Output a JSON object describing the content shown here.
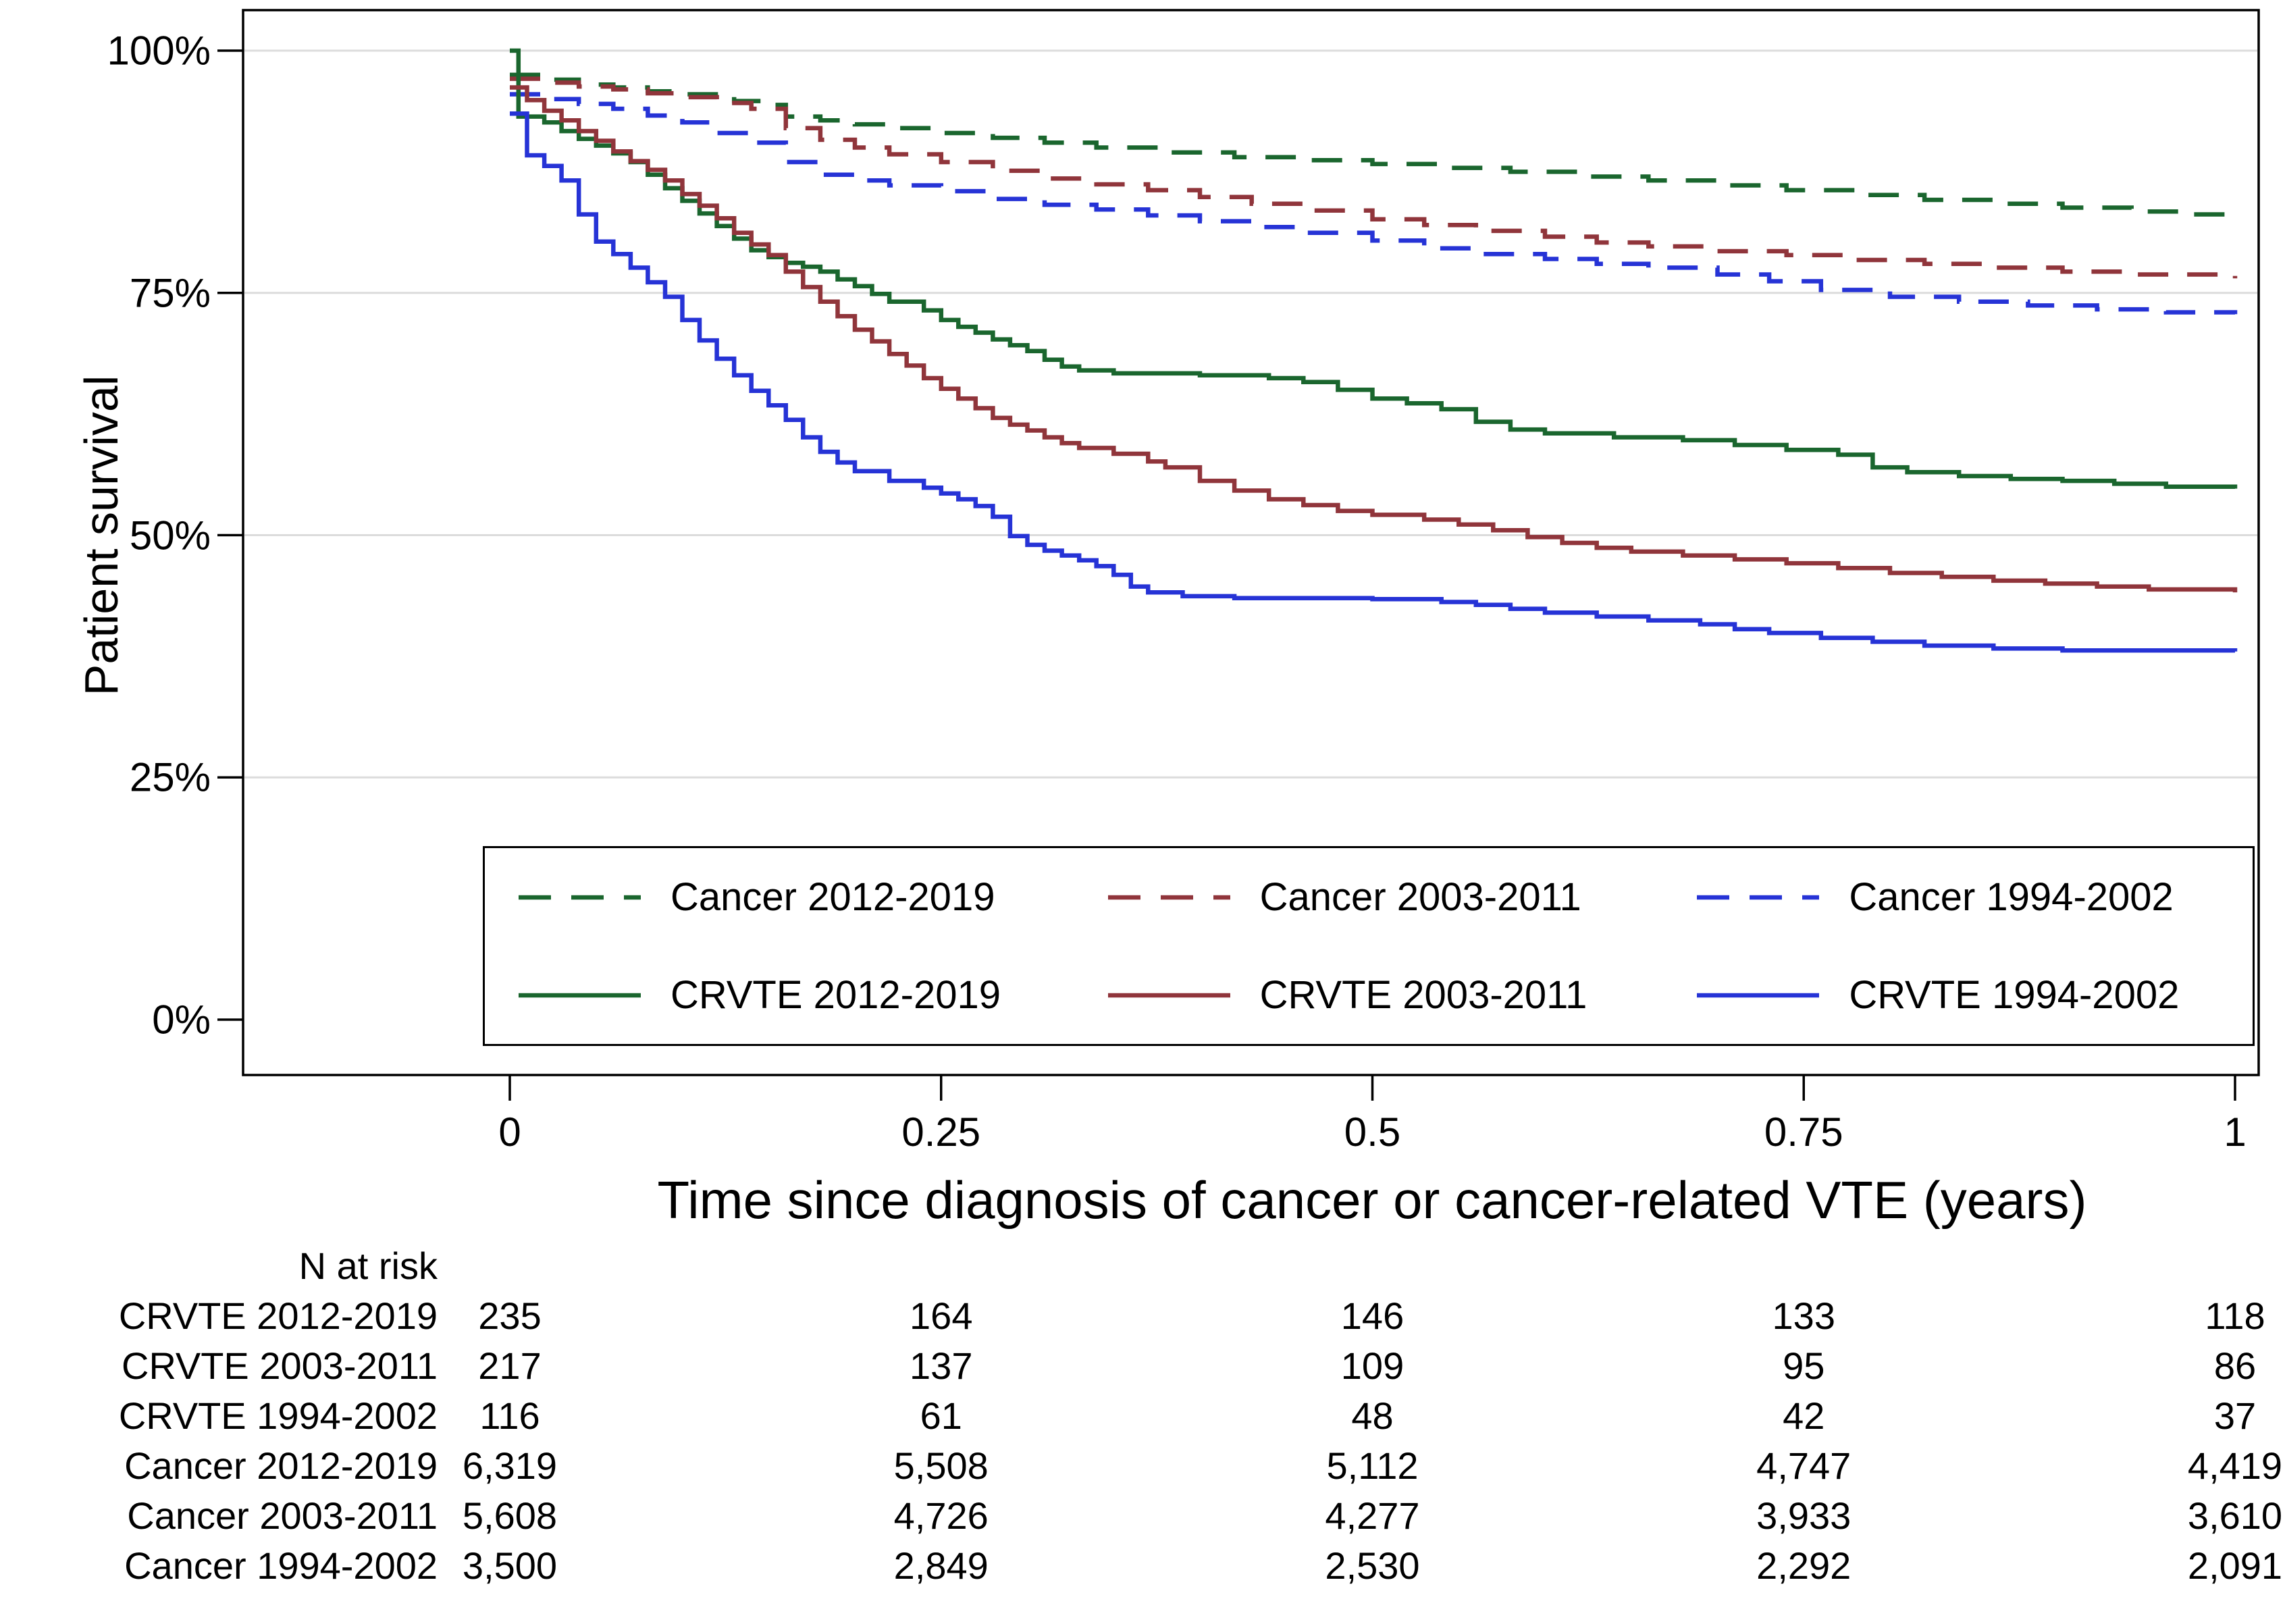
{
  "chart_data": {
    "type": "line",
    "subtype": "kaplan_meier_step",
    "title": "",
    "xlabel": "Time since diagnosis of cancer or cancer-related VTE (years)",
    "ylabel": "Patient survival",
    "xlim": [
      0,
      1
    ],
    "ylim": [
      0,
      1
    ],
    "x_ticks": [
      0,
      0.25,
      0.5,
      0.75,
      1
    ],
    "x_tick_labels": [
      "0",
      "0.25",
      "0.5",
      "0.75",
      "1"
    ],
    "y_ticks": [
      0,
      0.25,
      0.5,
      0.75,
      1
    ],
    "y_tick_labels": [
      "0%",
      "25%",
      "50%",
      "75%",
      "100%"
    ],
    "grid": "horizontal",
    "grid_color": "#dcdcdc",
    "axis_color": "#000000",
    "legend_position": "inside-bottom",
    "series": [
      {
        "name": "Cancer 2012-2019",
        "color": "#1a662e",
        "dashed": true,
        "points": [
          [
            0,
            0.975
          ],
          [
            0.02,
            0.97
          ],
          [
            0.04,
            0.965
          ],
          [
            0.06,
            0.962
          ],
          [
            0.08,
            0.958
          ],
          [
            0.1,
            0.955
          ],
          [
            0.13,
            0.948
          ],
          [
            0.15,
            0.944
          ],
          [
            0.16,
            0.932
          ],
          [
            0.18,
            0.928
          ],
          [
            0.2,
            0.924
          ],
          [
            0.22,
            0.92
          ],
          [
            0.25,
            0.915
          ],
          [
            0.28,
            0.91
          ],
          [
            0.31,
            0.905
          ],
          [
            0.34,
            0.9
          ],
          [
            0.38,
            0.895
          ],
          [
            0.42,
            0.89
          ],
          [
            0.46,
            0.887
          ],
          [
            0.5,
            0.883
          ],
          [
            0.54,
            0.879
          ],
          [
            0.58,
            0.875
          ],
          [
            0.62,
            0.87
          ],
          [
            0.66,
            0.866
          ],
          [
            0.7,
            0.861
          ],
          [
            0.74,
            0.856
          ],
          [
            0.78,
            0.851
          ],
          [
            0.82,
            0.846
          ],
          [
            0.86,
            0.842
          ],
          [
            0.9,
            0.838
          ],
          [
            0.94,
            0.834
          ],
          [
            0.97,
            0.831
          ],
          [
            1.0,
            0.828
          ]
        ]
      },
      {
        "name": "Cancer 2003-2011",
        "color": "#90353b",
        "dashed": true,
        "points": [
          [
            0,
            0.971
          ],
          [
            0.02,
            0.967
          ],
          [
            0.04,
            0.963
          ],
          [
            0.06,
            0.96
          ],
          [
            0.08,
            0.956
          ],
          [
            0.1,
            0.952
          ],
          [
            0.12,
            0.946
          ],
          [
            0.14,
            0.94
          ],
          [
            0.16,
            0.92
          ],
          [
            0.18,
            0.908
          ],
          [
            0.2,
            0.9
          ],
          [
            0.22,
            0.893
          ],
          [
            0.25,
            0.885
          ],
          [
            0.28,
            0.876
          ],
          [
            0.31,
            0.868
          ],
          [
            0.34,
            0.862
          ],
          [
            0.37,
            0.856
          ],
          [
            0.4,
            0.849
          ],
          [
            0.43,
            0.842
          ],
          [
            0.46,
            0.835
          ],
          [
            0.5,
            0.826
          ],
          [
            0.53,
            0.82
          ],
          [
            0.56,
            0.814
          ],
          [
            0.6,
            0.808
          ],
          [
            0.63,
            0.802
          ],
          [
            0.66,
            0.798
          ],
          [
            0.7,
            0.793
          ],
          [
            0.74,
            0.789
          ],
          [
            0.78,
            0.784
          ],
          [
            0.82,
            0.78
          ],
          [
            0.86,
            0.776
          ],
          [
            0.9,
            0.772
          ],
          [
            0.94,
            0.769
          ],
          [
            1.0,
            0.765
          ]
        ]
      },
      {
        "name": "Cancer 1994-2002",
        "color": "#2633d6",
        "dashed": true,
        "points": [
          [
            0,
            0.955
          ],
          [
            0.02,
            0.95
          ],
          [
            0.04,
            0.945
          ],
          [
            0.06,
            0.94
          ],
          [
            0.08,
            0.933
          ],
          [
            0.1,
            0.926
          ],
          [
            0.12,
            0.915
          ],
          [
            0.14,
            0.905
          ],
          [
            0.16,
            0.885
          ],
          [
            0.18,
            0.872
          ],
          [
            0.2,
            0.866
          ],
          [
            0.22,
            0.861
          ],
          [
            0.25,
            0.855
          ],
          [
            0.28,
            0.847
          ],
          [
            0.31,
            0.841
          ],
          [
            0.34,
            0.836
          ],
          [
            0.37,
            0.83
          ],
          [
            0.4,
            0.824
          ],
          [
            0.43,
            0.818
          ],
          [
            0.46,
            0.812
          ],
          [
            0.5,
            0.804
          ],
          [
            0.53,
            0.796
          ],
          [
            0.56,
            0.79
          ],
          [
            0.6,
            0.785
          ],
          [
            0.63,
            0.78
          ],
          [
            0.66,
            0.776
          ],
          [
            0.7,
            0.769
          ],
          [
            0.73,
            0.762
          ],
          [
            0.76,
            0.753
          ],
          [
            0.8,
            0.746
          ],
          [
            0.84,
            0.741
          ],
          [
            0.88,
            0.737
          ],
          [
            0.92,
            0.733
          ],
          [
            0.96,
            0.73
          ],
          [
            1.0,
            0.728
          ]
        ]
      },
      {
        "name": "CRVTE 2012-2019",
        "color": "#1a662e",
        "dashed": false,
        "points": [
          [
            0,
            1.0
          ],
          [
            0.005,
            0.932
          ],
          [
            0.02,
            0.926
          ],
          [
            0.03,
            0.917
          ],
          [
            0.04,
            0.909
          ],
          [
            0.05,
            0.902
          ],
          [
            0.06,
            0.894
          ],
          [
            0.07,
            0.885
          ],
          [
            0.08,
            0.872
          ],
          [
            0.09,
            0.858
          ],
          [
            0.1,
            0.845
          ],
          [
            0.11,
            0.832
          ],
          [
            0.12,
            0.819
          ],
          [
            0.13,
            0.806
          ],
          [
            0.14,
            0.794
          ],
          [
            0.15,
            0.787
          ],
          [
            0.16,
            0.781
          ],
          [
            0.17,
            0.777
          ],
          [
            0.18,
            0.772
          ],
          [
            0.19,
            0.764
          ],
          [
            0.2,
            0.757
          ],
          [
            0.21,
            0.749
          ],
          [
            0.22,
            0.741
          ],
          [
            0.24,
            0.732
          ],
          [
            0.25,
            0.722
          ],
          [
            0.26,
            0.715
          ],
          [
            0.27,
            0.709
          ],
          [
            0.28,
            0.702
          ],
          [
            0.29,
            0.696
          ],
          [
            0.3,
            0.69
          ],
          [
            0.31,
            0.681
          ],
          [
            0.32,
            0.674
          ],
          [
            0.33,
            0.67
          ],
          [
            0.35,
            0.667
          ],
          [
            0.4,
            0.665
          ],
          [
            0.44,
            0.662
          ],
          [
            0.46,
            0.658
          ],
          [
            0.48,
            0.65
          ],
          [
            0.5,
            0.641
          ],
          [
            0.52,
            0.636
          ],
          [
            0.54,
            0.63
          ],
          [
            0.56,
            0.617
          ],
          [
            0.58,
            0.609
          ],
          [
            0.6,
            0.605
          ],
          [
            0.64,
            0.601
          ],
          [
            0.68,
            0.598
          ],
          [
            0.71,
            0.593
          ],
          [
            0.74,
            0.588
          ],
          [
            0.77,
            0.583
          ],
          [
            0.79,
            0.57
          ],
          [
            0.81,
            0.565
          ],
          [
            0.84,
            0.561
          ],
          [
            0.87,
            0.558
          ],
          [
            0.9,
            0.556
          ],
          [
            0.93,
            0.553
          ],
          [
            0.96,
            0.55
          ],
          [
            1.0,
            0.548
          ]
        ]
      },
      {
        "name": "CRVTE 2003-2011",
        "color": "#90353b",
        "dashed": false,
        "points": [
          [
            0,
            0.962
          ],
          [
            0.01,
            0.949
          ],
          [
            0.02,
            0.938
          ],
          [
            0.03,
            0.928
          ],
          [
            0.04,
            0.917
          ],
          [
            0.05,
            0.907
          ],
          [
            0.06,
            0.896
          ],
          [
            0.07,
            0.886
          ],
          [
            0.08,
            0.877
          ],
          [
            0.09,
            0.866
          ],
          [
            0.1,
            0.852
          ],
          [
            0.11,
            0.84
          ],
          [
            0.12,
            0.827
          ],
          [
            0.13,
            0.812
          ],
          [
            0.14,
            0.8
          ],
          [
            0.15,
            0.789
          ],
          [
            0.16,
            0.772
          ],
          [
            0.17,
            0.756
          ],
          [
            0.18,
            0.741
          ],
          [
            0.19,
            0.726
          ],
          [
            0.2,
            0.712
          ],
          [
            0.21,
            0.7
          ],
          [
            0.22,
            0.687
          ],
          [
            0.23,
            0.675
          ],
          [
            0.24,
            0.662
          ],
          [
            0.25,
            0.651
          ],
          [
            0.26,
            0.641
          ],
          [
            0.27,
            0.631
          ],
          [
            0.28,
            0.621
          ],
          [
            0.29,
            0.614
          ],
          [
            0.3,
            0.608
          ],
          [
            0.31,
            0.601
          ],
          [
            0.32,
            0.595
          ],
          [
            0.33,
            0.59
          ],
          [
            0.35,
            0.584
          ],
          [
            0.37,
            0.576
          ],
          [
            0.38,
            0.57
          ],
          [
            0.4,
            0.556
          ],
          [
            0.42,
            0.546
          ],
          [
            0.44,
            0.537
          ],
          [
            0.46,
            0.531
          ],
          [
            0.48,
            0.525
          ],
          [
            0.5,
            0.521
          ],
          [
            0.53,
            0.516
          ],
          [
            0.55,
            0.511
          ],
          [
            0.57,
            0.505
          ],
          [
            0.59,
            0.498
          ],
          [
            0.61,
            0.492
          ],
          [
            0.63,
            0.487
          ],
          [
            0.65,
            0.483
          ],
          [
            0.68,
            0.479
          ],
          [
            0.71,
            0.475
          ],
          [
            0.74,
            0.471
          ],
          [
            0.77,
            0.466
          ],
          [
            0.8,
            0.461
          ],
          [
            0.83,
            0.457
          ],
          [
            0.86,
            0.453
          ],
          [
            0.89,
            0.45
          ],
          [
            0.92,
            0.447
          ],
          [
            0.95,
            0.444
          ],
          [
            1.0,
            0.441
          ]
        ]
      },
      {
        "name": "CRVTE 1994-2002",
        "color": "#2633d6",
        "dashed": false,
        "points": [
          [
            0,
            0.935
          ],
          [
            0.01,
            0.892
          ],
          [
            0.02,
            0.881
          ],
          [
            0.03,
            0.866
          ],
          [
            0.04,
            0.831
          ],
          [
            0.05,
            0.803
          ],
          [
            0.06,
            0.79
          ],
          [
            0.07,
            0.776
          ],
          [
            0.08,
            0.761
          ],
          [
            0.09,
            0.746
          ],
          [
            0.1,
            0.722
          ],
          [
            0.11,
            0.701
          ],
          [
            0.12,
            0.682
          ],
          [
            0.13,
            0.665
          ],
          [
            0.14,
            0.649
          ],
          [
            0.15,
            0.634
          ],
          [
            0.16,
            0.619
          ],
          [
            0.17,
            0.601
          ],
          [
            0.18,
            0.586
          ],
          [
            0.19,
            0.575
          ],
          [
            0.2,
            0.566
          ],
          [
            0.22,
            0.556
          ],
          [
            0.24,
            0.549
          ],
          [
            0.25,
            0.543
          ],
          [
            0.26,
            0.537
          ],
          [
            0.27,
            0.53
          ],
          [
            0.28,
            0.519
          ],
          [
            0.29,
            0.499
          ],
          [
            0.3,
            0.49
          ],
          [
            0.31,
            0.484
          ],
          [
            0.32,
            0.479
          ],
          [
            0.33,
            0.474
          ],
          [
            0.34,
            0.468
          ],
          [
            0.35,
            0.459
          ],
          [
            0.36,
            0.447
          ],
          [
            0.37,
            0.441
          ],
          [
            0.39,
            0.437
          ],
          [
            0.42,
            0.435
          ],
          [
            0.5,
            0.434
          ],
          [
            0.54,
            0.431
          ],
          [
            0.56,
            0.428
          ],
          [
            0.58,
            0.424
          ],
          [
            0.6,
            0.42
          ],
          [
            0.63,
            0.416
          ],
          [
            0.66,
            0.412
          ],
          [
            0.69,
            0.408
          ],
          [
            0.71,
            0.403
          ],
          [
            0.73,
            0.399
          ],
          [
            0.76,
            0.394
          ],
          [
            0.79,
            0.39
          ],
          [
            0.82,
            0.386
          ],
          [
            0.86,
            0.383
          ],
          [
            0.9,
            0.381
          ],
          [
            1.0,
            0.38
          ]
        ]
      }
    ]
  },
  "risk_table": {
    "title": "N at risk",
    "rows": [
      {
        "label": "CRVTE 2012-2019",
        "values": [
          "235",
          "164",
          "146",
          "133",
          "118"
        ]
      },
      {
        "label": "CRVTE 2003-2011",
        "values": [
          "217",
          "137",
          "109",
          "95",
          "86"
        ]
      },
      {
        "label": "CRVTE 1994-2002",
        "values": [
          "116",
          "61",
          "48",
          "42",
          "37"
        ]
      },
      {
        "label": "Cancer 2012-2019",
        "values": [
          "6,319",
          "5,508",
          "5,112",
          "4,747",
          "4,419"
        ]
      },
      {
        "label": "Cancer 2003-2011",
        "values": [
          "5,608",
          "4,726",
          "4,277",
          "3,933",
          "3,610"
        ]
      },
      {
        "label": "Cancer 1994-2002",
        "values": [
          "3,500",
          "2,849",
          "2,530",
          "2,292",
          "2,091"
        ]
      }
    ]
  }
}
